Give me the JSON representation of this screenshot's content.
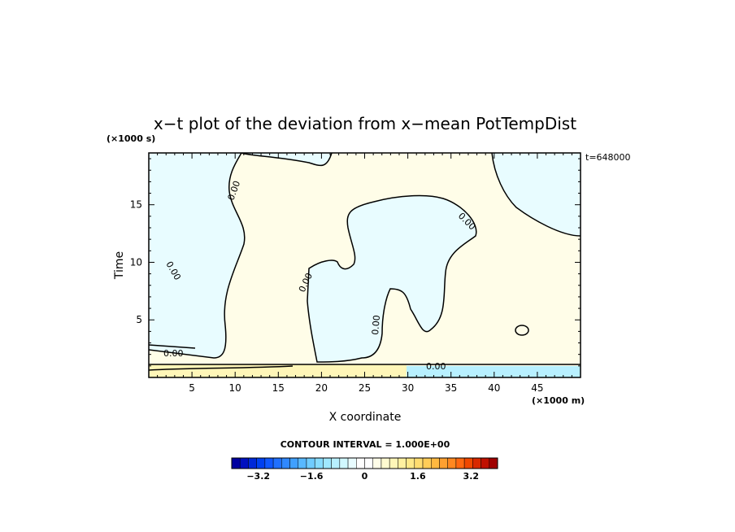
{
  "chart_data": {
    "type": "heatmap",
    "title": "x−t plot of the deviation from x−mean PotTempDist",
    "xlabel": "X coordinate",
    "ylabel": "Time",
    "x_unit": "(×1000 m)",
    "y_unit": "(×1000 s)",
    "time_stamp": "t=648000",
    "xlim": [
      0,
      50
    ],
    "ylim": [
      0,
      19.5
    ],
    "x_ticks": [
      5,
      10,
      15,
      20,
      25,
      30,
      35,
      40,
      45
    ],
    "y_ticks": [
      5,
      10,
      15
    ],
    "contour_label": "0.00",
    "contour_interval_text": "CONTOUR INTERVAL = 1.000E+00",
    "colorbar": {
      "range": [
        -4,
        4
      ],
      "tick_values": [
        -3.2,
        -1.6,
        0,
        1.6,
        3.2
      ],
      "tick_labels": [
        "−3.2",
        "−1.6",
        "0",
        "1.6",
        "3.2"
      ],
      "colors": [
        "#0000a0",
        "#0010c0",
        "#0028d8",
        "#0040f0",
        "#1058ff",
        "#2070ff",
        "#3088ff",
        "#40a0ff",
        "#58b8ff",
        "#70ccff",
        "#88dcff",
        "#a0e8ff",
        "#b8f0ff",
        "#d0f8ff",
        "#e8fcff",
        "#ffffff",
        "#ffffff",
        "#fffde8",
        "#fffad0",
        "#fff6b8",
        "#fff0a0",
        "#ffe888",
        "#ffdc70",
        "#ffcc58",
        "#ffb840",
        "#ffa030",
        "#ff8820",
        "#ff6810",
        "#f04800",
        "#d82800",
        "#c01000",
        "#a00000"
      ]
    },
    "regions_colors": {
      "negative": "#e8fcff",
      "positive": "#fffde8",
      "strong_positive": "#fff6b8",
      "strong_negative": "#a0e8ff"
    }
  }
}
